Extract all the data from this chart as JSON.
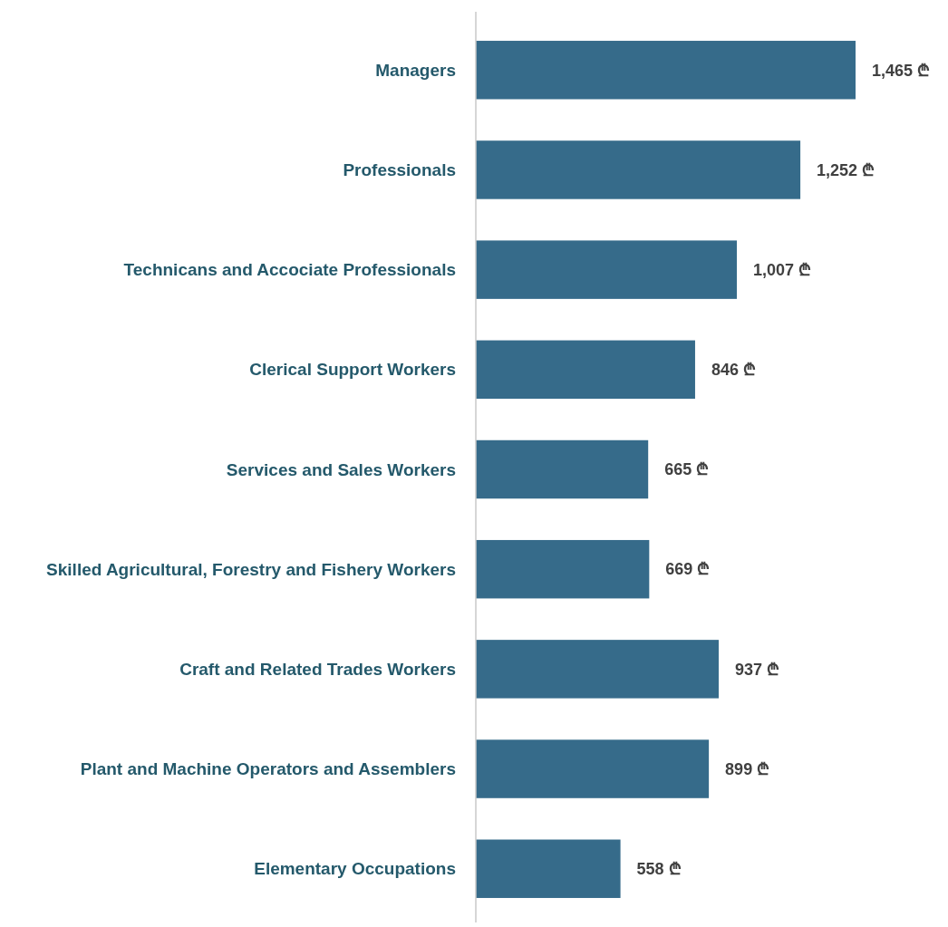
{
  "chart_data": {
    "type": "bar",
    "orientation": "horizontal",
    "categories": [
      "Managers",
      "Professionals",
      "Technicans and Accociate Professionals",
      "Clerical Support Workers",
      "Services and Sales Workers",
      "Skilled Agricultural, Forestry and Fishery Workers",
      "Craft and Related Trades Workers",
      "Plant and Machine Operators and Assemblers",
      "Elementary Occupations"
    ],
    "values": [
      1465,
      1252,
      1007,
      846,
      665,
      669,
      937,
      899,
      558
    ],
    "value_labels": [
      "1,465 ₾",
      "1,252 ₾",
      "1,007 ₾",
      "846 ₾",
      "665 ₾",
      "669 ₾",
      "937 ₾",
      "899 ₾",
      "558 ₾"
    ],
    "color": "#366b8a"
  }
}
